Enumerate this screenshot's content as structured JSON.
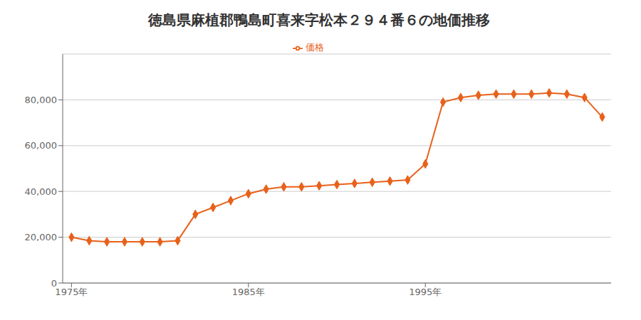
{
  "chart_data": {
    "type": "line",
    "title": "徳島県麻植郡鴨島町喜来字松本２９４番６の地価推移",
    "x": [
      1975,
      1976,
      1977,
      1978,
      1979,
      1980,
      1981,
      1982,
      1983,
      1984,
      1985,
      1986,
      1987,
      1988,
      1989,
      1990,
      1991,
      1992,
      1993,
      1994,
      1995,
      1996,
      1997,
      1998,
      1999,
      2000,
      2001,
      2002,
      2003,
      2004,
      2005
    ],
    "series": [
      {
        "name": "価格",
        "color": "#e8611a",
        "marker": "diamond",
        "values": [
          20000,
          18500,
          18000,
          18000,
          18000,
          18000,
          18500,
          30000,
          33000,
          36000,
          39000,
          41000,
          42000,
          42000,
          42500,
          43000,
          43500,
          44000,
          44500,
          45000,
          52000,
          79000,
          81000,
          82000,
          82500,
          82500,
          82500,
          83000,
          82500,
          81000,
          72500
        ]
      }
    ],
    "xlim": [
      1974.5,
      2005.5
    ],
    "xticks": [
      {
        "value": 1975,
        "label": "1975年"
      },
      {
        "value": 1985,
        "label": "1985年"
      },
      {
        "value": 1995,
        "label": "1995年"
      }
    ],
    "ylim": [
      0,
      100000
    ],
    "yticks": [
      0,
      {
        "value": 20000,
        "label": "20,000"
      },
      {
        "value": 40000,
        "label": "40,000"
      },
      {
        "value": 60000,
        "label": "60,000"
      },
      {
        "value": 80000,
        "label": "80,000"
      }
    ],
    "grid": "y",
    "legend": "top"
  }
}
